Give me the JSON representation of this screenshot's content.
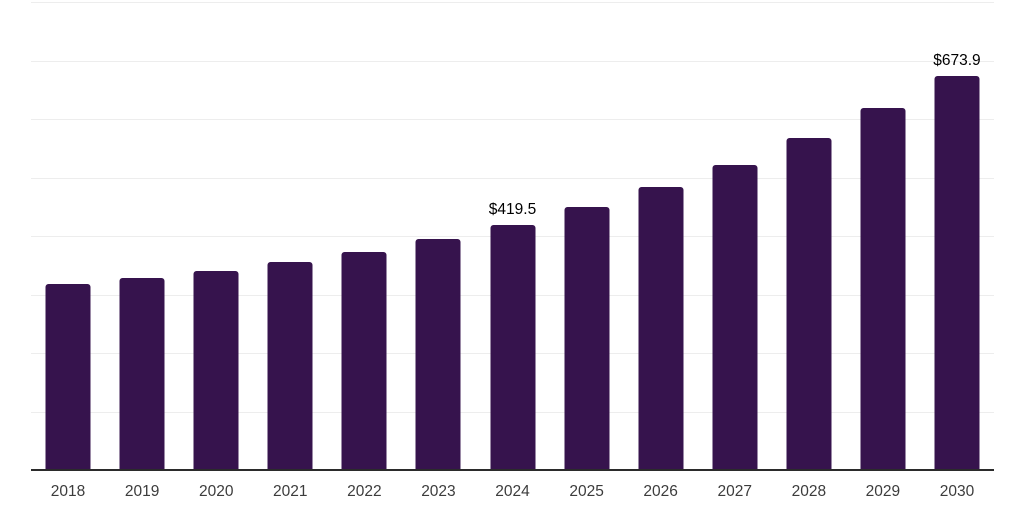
{
  "chart_data": {
    "type": "bar",
    "title": "",
    "xlabel": "",
    "ylabel": "",
    "categories": [
      "2018",
      "2019",
      "2020",
      "2021",
      "2022",
      "2023",
      "2024",
      "2025",
      "2026",
      "2027",
      "2028",
      "2029",
      "2030"
    ],
    "values": [
      318.4,
      328.7,
      340.9,
      355.3,
      373.0,
      394.5,
      419.5,
      449.5,
      483.5,
      521.9,
      567.0,
      619.5,
      673.9
    ],
    "bar_labels": [
      "",
      "",
      "",
      "",
      "",
      "",
      "$419.5",
      "",
      "",
      "",
      "",
      "",
      "$673.9"
    ],
    "ylim": [
      0,
      800
    ],
    "gridline_step": 100,
    "grid": true,
    "legend": "none",
    "colors": {
      "bar": "#36134d",
      "gridline": "#ededed",
      "axis_line": "#2b2b2b",
      "tick_label": "#3c3c3c",
      "data_label": "#000000",
      "background": "#ffffff"
    }
  }
}
